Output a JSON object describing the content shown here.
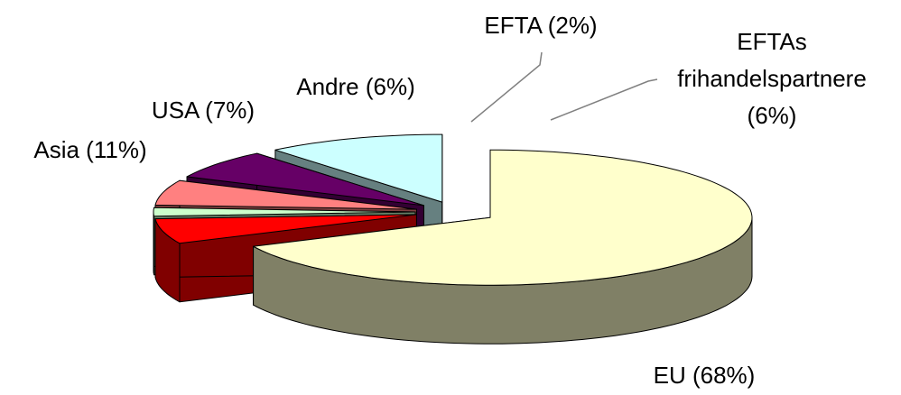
{
  "chart_data": {
    "type": "pie3d",
    "categories": [
      "EU (68%)",
      "EFTAs frihandelspartnere (6%)",
      "EFTA (2%)",
      "Andre (6%)",
      "USA (7%)",
      "Asia (11%)"
    ],
    "values": [
      68,
      6,
      2,
      6,
      7,
      11
    ],
    "colors": [
      "#ffffcc",
      "#ff0000",
      "#ccffcc",
      "#ff8080",
      "#660066",
      "#ccffff"
    ],
    "exploded": true
  }
}
